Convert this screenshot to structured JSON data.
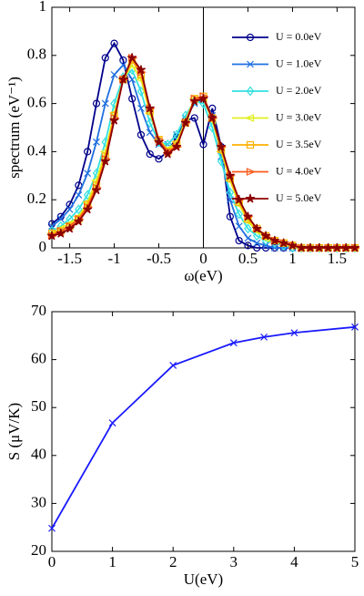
{
  "chart_data": [
    {
      "type": "line",
      "xlabel": "ω(eV)",
      "ylabel": "spectrum (eV⁻¹)",
      "x": [
        -1.7,
        -1.6,
        -1.5,
        -1.4,
        -1.3,
        -1.2,
        -1.1,
        -1.0,
        -0.9,
        -0.8,
        -0.7,
        -0.6,
        -0.5,
        -0.4,
        -0.3,
        -0.2,
        -0.1,
        0.0,
        0.1,
        0.2,
        0.3,
        0.4,
        0.5,
        0.6,
        0.7,
        0.8,
        0.9,
        1.0,
        1.1,
        1.2,
        1.3,
        1.4,
        1.5,
        1.6,
        1.7
      ],
      "series": [
        {
          "name": "U = 0.0eV",
          "color": "#00008b",
          "marker": "circle",
          "values": [
            0.1,
            0.13,
            0.18,
            0.26,
            0.4,
            0.6,
            0.79,
            0.85,
            0.78,
            0.62,
            0.47,
            0.39,
            0.37,
            0.4,
            0.46,
            0.53,
            0.54,
            0.43,
            0.58,
            0.42,
            0.13,
            0.03,
            0.01,
            0,
            0,
            0,
            0,
            0,
            0,
            0,
            0,
            0,
            0,
            0,
            0
          ]
        },
        {
          "name": "U = 1.0eV",
          "color": "#1f6fe0",
          "marker": "x",
          "values": [
            0.09,
            0.12,
            0.16,
            0.22,
            0.31,
            0.44,
            0.6,
            0.72,
            0.76,
            0.7,
            0.58,
            0.48,
            0.43,
            0.43,
            0.47,
            0.54,
            0.6,
            0.62,
            0.55,
            0.38,
            0.2,
            0.09,
            0.04,
            0.02,
            0.01,
            0,
            0,
            0,
            0,
            0,
            0,
            0,
            0,
            0,
            0
          ]
        },
        {
          "name": "U = 2.0eV",
          "color": "#33e0e0",
          "marker": "diamond",
          "values": [
            0.07,
            0.09,
            0.12,
            0.16,
            0.22,
            0.31,
            0.44,
            0.6,
            0.71,
            0.74,
            0.65,
            0.52,
            0.44,
            0.43,
            0.47,
            0.55,
            0.61,
            0.6,
            0.5,
            0.36,
            0.23,
            0.14,
            0.08,
            0.05,
            0.03,
            0.02,
            0.01,
            0,
            0,
            0,
            0,
            0,
            0,
            0,
            0
          ]
        },
        {
          "name": "U = 3.0eV",
          "color": "#e0f020",
          "marker": "triangle-left",
          "values": [
            0.06,
            0.08,
            0.1,
            0.13,
            0.19,
            0.28,
            0.4,
            0.56,
            0.7,
            0.76,
            0.7,
            0.56,
            0.45,
            0.41,
            0.44,
            0.53,
            0.62,
            0.62,
            0.53,
            0.4,
            0.28,
            0.18,
            0.11,
            0.07,
            0.04,
            0.03,
            0.02,
            0.01,
            0,
            0,
            0,
            0,
            0,
            0,
            0
          ]
        },
        {
          "name": "U = 3.5eV",
          "color": "#ffb000",
          "marker": "square",
          "values": [
            0.06,
            0.07,
            0.09,
            0.12,
            0.18,
            0.26,
            0.38,
            0.55,
            0.7,
            0.78,
            0.72,
            0.57,
            0.45,
            0.4,
            0.43,
            0.52,
            0.62,
            0.63,
            0.54,
            0.41,
            0.29,
            0.19,
            0.12,
            0.08,
            0.05,
            0.03,
            0.02,
            0.01,
            0,
            0,
            0,
            0,
            0,
            0,
            0
          ]
        },
        {
          "name": "U = 4.0eV",
          "color": "#ff5a1a",
          "marker": "triangle-right",
          "values": [
            0.05,
            0.07,
            0.09,
            0.12,
            0.17,
            0.25,
            0.37,
            0.54,
            0.7,
            0.79,
            0.73,
            0.58,
            0.45,
            0.4,
            0.42,
            0.52,
            0.62,
            0.63,
            0.54,
            0.42,
            0.3,
            0.2,
            0.13,
            0.08,
            0.05,
            0.03,
            0.02,
            0.01,
            0,
            0,
            0,
            0,
            0,
            0,
            0
          ]
        },
        {
          "name": "U = 5.0eV",
          "color": "#8b0000",
          "marker": "star",
          "values": [
            0.05,
            0.06,
            0.08,
            0.11,
            0.16,
            0.24,
            0.36,
            0.53,
            0.7,
            0.79,
            0.74,
            0.58,
            0.44,
            0.39,
            0.42,
            0.52,
            0.61,
            0.62,
            0.54,
            0.42,
            0.3,
            0.2,
            0.13,
            0.08,
            0.05,
            0.03,
            0.02,
            0.01,
            0,
            0,
            0,
            0,
            0,
            0,
            0
          ]
        }
      ],
      "xlim": [
        -1.7,
        1.7
      ],
      "xticks": [
        -1.5,
        -1,
        -0.5,
        0,
        0.5,
        1,
        1.5
      ],
      "ylim": [
        0,
        1
      ],
      "yticks": [
        0,
        0.2,
        0.4,
        0.6,
        0.8,
        1
      ],
      "vline": 0,
      "legend": "upper right"
    },
    {
      "type": "line",
      "xlabel": "U(eV)",
      "ylabel": "S (μV/K)",
      "x": [
        0,
        1,
        2,
        3,
        3.5,
        4,
        5
      ],
      "series": [
        {
          "color": "#1a1aff",
          "marker": "x",
          "values": [
            24.8,
            46.8,
            58.8,
            63.5,
            64.7,
            65.6,
            66.8
          ]
        }
      ],
      "xlim": [
        0,
        5
      ],
      "xticks": [
        0,
        1,
        2,
        3,
        4,
        5
      ],
      "ylim": [
        20,
        70
      ],
      "yticks": [
        20,
        30,
        40,
        50,
        60,
        70
      ]
    }
  ]
}
